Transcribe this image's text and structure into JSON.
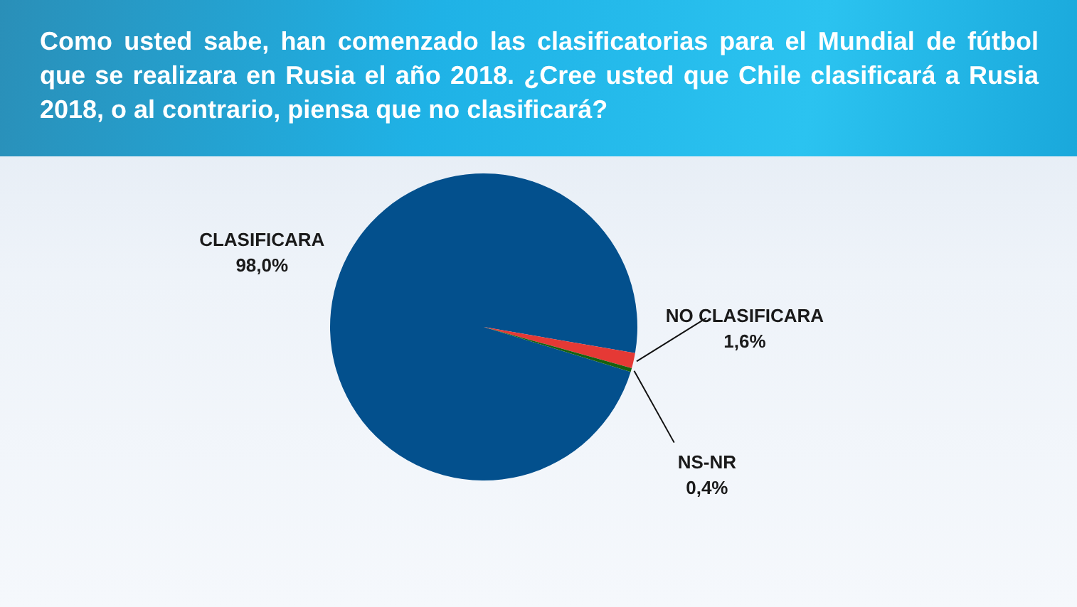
{
  "chart_data": {
    "type": "pie",
    "title": "Como usted sabe, han comenzado las clasificatorias para el Mundial de fútbol que se realizara en Rusia el año 2018. ¿Cree usted que Chile clasificará a Rusia 2018, o al contrario, piensa que no clasificará?",
    "categories": [
      "CLASIFICARA",
      "NO CLASIFICARA",
      "NS-NR"
    ],
    "values": [
      98.0,
      1.6,
      0.4
    ],
    "colors": [
      "#03508d",
      "#e53935",
      "#17600f"
    ],
    "value_labels": [
      "98,0%",
      "1,6%",
      "0,4%"
    ]
  }
}
